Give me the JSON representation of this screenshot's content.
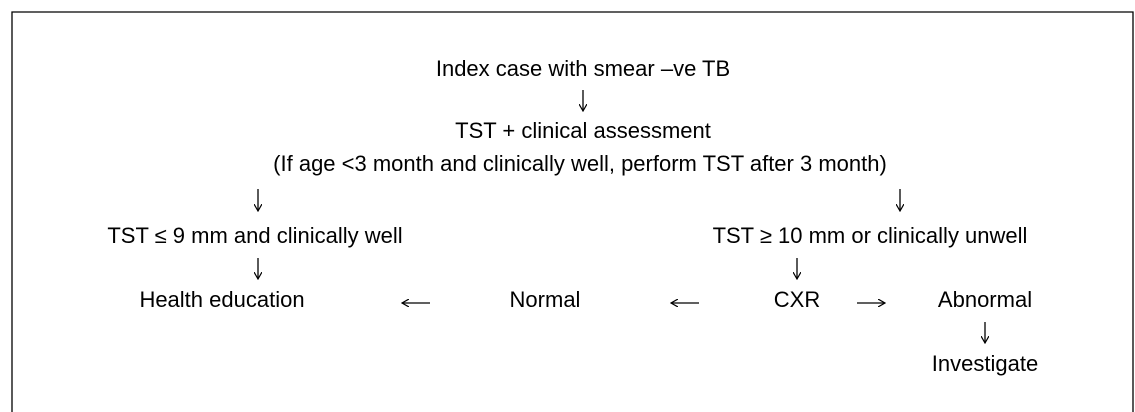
{
  "nodes": [
    {
      "label": "Index case with smear –ve TB"
    },
    {
      "label": "TST + clinical assessment"
    },
    {
      "label": "(If age <3 month and clinically well, perform TST after 3 month)"
    },
    {
      "label": "TST ≤ 9 mm and clinically well"
    },
    {
      "label": "TST ≥ 10 mm or clinically unwell"
    },
    {
      "label": "Health education"
    },
    {
      "label": "Normal"
    },
    {
      "label": "CXR"
    },
    {
      "label": "Abnormal"
    },
    {
      "label": "Investigate"
    }
  ]
}
